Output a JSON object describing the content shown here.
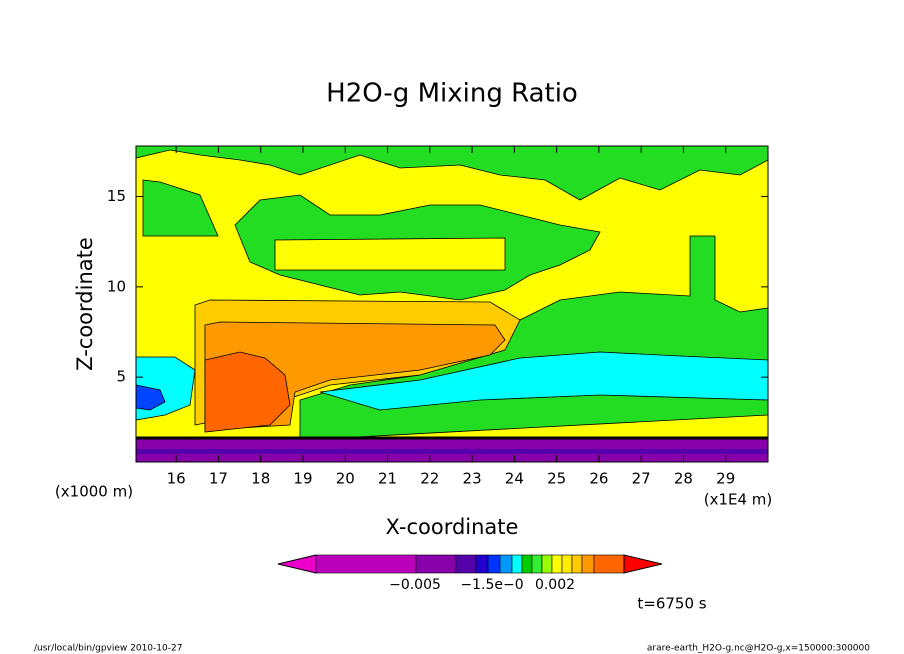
{
  "chart_data": {
    "type": "contour",
    "title": "H2O-g Mixing Ratio",
    "x_label": "X-coordinate",
    "y_label": "Z-coordinate",
    "x_unit": "(x1E4 m)",
    "y_unit": "(x1000 m)",
    "xlim": [
      15.05,
      30.0
    ],
    "ylim": [
      0.3,
      17.8
    ],
    "xticks": [
      16,
      17,
      18,
      19,
      20,
      21,
      22,
      23,
      24,
      25,
      26,
      27,
      28,
      29
    ],
    "yticks": [
      5,
      10,
      15
    ],
    "colorbar": {
      "colors": [
        "#ee00cc",
        "#bb00bb",
        "#8800aa",
        "#5500aa",
        "#2200cc",
        "#0033ff",
        "#0099ff",
        "#00ffff",
        "#00cc00",
        "#33ee33",
        "#99ff00",
        "#ffff00",
        "#ffee00",
        "#ffcc00",
        "#ff9900",
        "#ff6600",
        "#ff0000"
      ],
      "labels": [
        "−0.005",
        "−1.5e−0",
        "0.002"
      ]
    },
    "time_label": "t=6750 s",
    "footer_left": "/usr/local/bin/gpview  2010-10-27",
    "footer_right": "arare-earth_H2O-g.nc@H2O-g,x=150000:300000"
  }
}
